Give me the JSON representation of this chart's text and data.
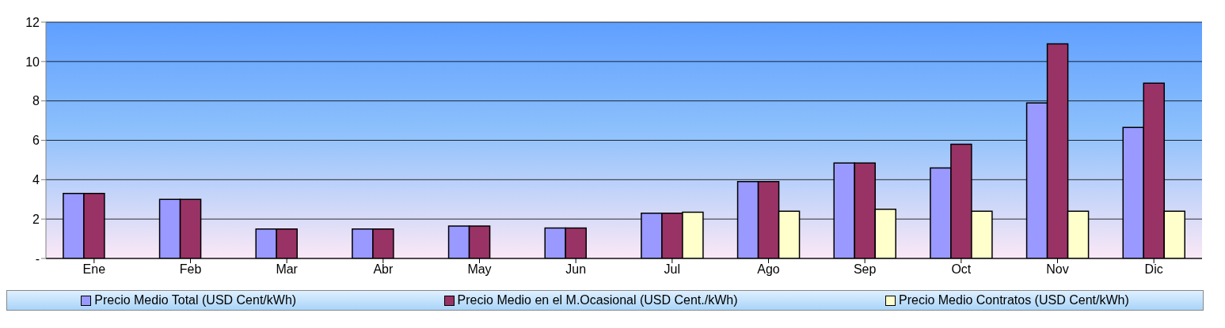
{
  "chart_data": {
    "type": "bar",
    "categories": [
      "Ene",
      "Feb",
      "Mar",
      "Abr",
      "May",
      "Jun",
      "Jul",
      "Ago",
      "Sep",
      "Oct",
      "Nov",
      "Dic"
    ],
    "series": [
      {
        "name": "Precio Medio Total (USD Cent/kWh)",
        "color": "#9999ff",
        "values": [
          3.3,
          3.0,
          1.5,
          1.5,
          1.65,
          1.55,
          2.3,
          3.9,
          4.85,
          4.6,
          7.9,
          6.65
        ]
      },
      {
        "name": "Precio Medio en el M.Ocasional (USD Cent./kWh)",
        "color": "#993366",
        "values": [
          3.3,
          3.0,
          1.5,
          1.5,
          1.65,
          1.55,
          2.3,
          3.9,
          4.85,
          5.8,
          10.9,
          8.9
        ]
      },
      {
        "name": "Precio Medio Contratos (USD Cent/kWh)",
        "color": "#ffffcc",
        "values": [
          0,
          0,
          0,
          0,
          0,
          0,
          2.35,
          2.4,
          2.5,
          2.4,
          2.4,
          2.4
        ]
      }
    ],
    "ylim": [
      0,
      12
    ],
    "yticks": [
      {
        "value": 0,
        "label": "-"
      },
      2,
      4,
      6,
      8,
      10,
      12
    ],
    "grid": "y",
    "legend": "bottom"
  }
}
